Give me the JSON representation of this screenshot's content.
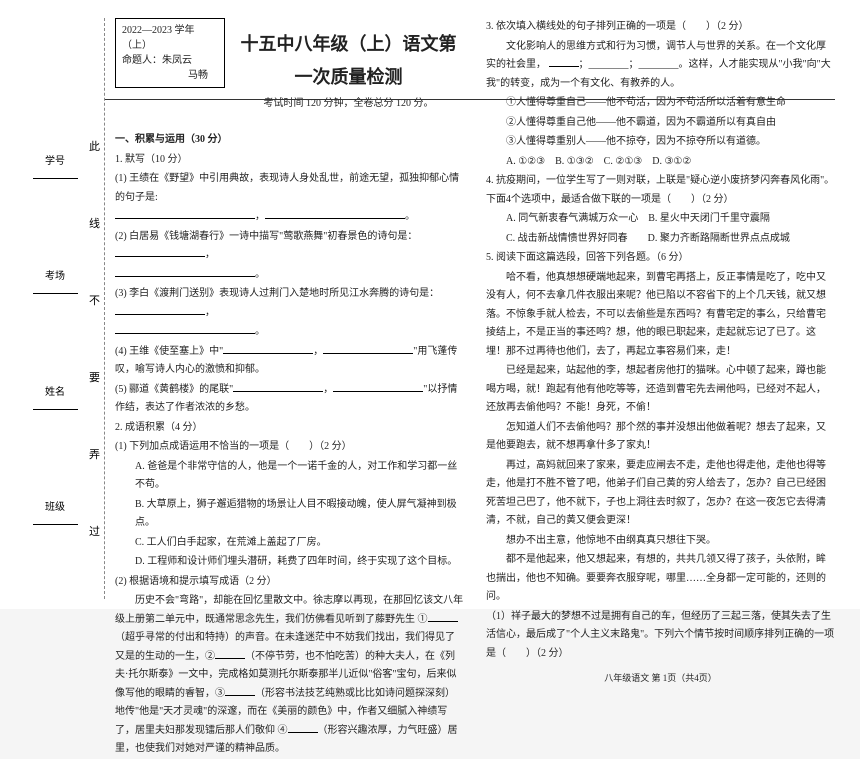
{
  "info_box": {
    "year": "2022—2023 学年（上）",
    "teacher_label": "命题人：",
    "teacher1": "朱凤云",
    "teacher2": "马畅"
  },
  "title": "十五中八年级（上）语文第一次质量检测",
  "subtitle": "考试时间 120 分钟，全卷总分 120 分。",
  "binding": {
    "labels": [
      "学号",
      "考场",
      "姓名",
      "班级"
    ],
    "seal_chars": [
      "此",
      "线",
      "不",
      "要",
      "弄",
      "过"
    ]
  },
  "col1": {
    "section1": "一、积累与运用（30 分）",
    "q1": "1. 默写（10 分）",
    "q1_1": "(1) 王绩在《野望》中引用典故，表现诗人身处乱世，前途无望，孤独抑郁心情的句子是:",
    "q1_2": "(2) 白居易《钱塘湖春行》一诗中描写\"莺歌燕舞\"初春景色的诗句是：",
    "q1_3": "(3) 李白《渡荆门送别》表现诗人过荆门入楚地时所见江水奔腾的诗句是：",
    "q1_4a": "(4) 王维《使至塞上》中\"",
    "q1_4b": "\"用飞蓬传叹，喻写诗人内心的激愤和抑郁。",
    "q1_5a": "(5) 郦道《黄鹤楼》的尾联\"",
    "q1_5b": "\"以抒情作结，表达了作者浓浓的乡愁。",
    "q2": "2. 成语积累（4 分）",
    "q2_1h": "(1) 下列加点成语运用不恰当的一项是（　　）（2 分）",
    "q2_1a": "A. 爸爸是个非常守信的人，他是一个一诺千金的人，对工作和学习都一丝不苟。",
    "q2_1b": "B. 大草原上，狮子邂逅猎物的场景让人目不暇接动魄，使人屏气凝神到极点。",
    "q2_1c": "C. 工人们白手起家，在荒滩上盖起了厂房。",
    "q2_1d": "D. 工程师和设计师们埋头潜研，耗费了四年时间，终于实现了这个目标。",
    "q2_2h": "(2) 根据语境和提示填写成语（2 分）",
    "q2_2p1a": "历史不会\"弯路\"，却能在回忆里散文中。徐志摩以再现，在那回忆该文八年级上册第二单元中，既通常思念先生，我们仿佛看见听到了藤野先生 ①",
    "q2_2p1b": "（超乎寻常的付出和特持）的声音。在未逢迷茫中不妨我们找出，我们得见了又是的生动的一生，②",
    "q2_2p1c": "（不停节劳，也不怕吃苦）的种大夫人，在《列夫·托尔斯泰》一文中，完成格如莫测托尔斯泰那半儿近似\"俗客\"宝句，后来似像写他的眼睛的睿智，③",
    "q2_2p1d": "（形容书法技艺纯熟或比比如诗问题探深刻）地传\"他是\"天才灵魂\"的深邃，而在《美丽的颜色》中，作者又细腻入神绩写了，居里夫妇那发现镭后那人们敬仰 ④",
    "q2_2p1e": "（形容兴趣浓厚，力气旺盛）居里，也使我们对她对严谨的精神品质。"
  },
  "col2": {
    "q3": "3. 依次填入横线处的句子排列正确的一项是（　　）（2 分）",
    "q3_intro": "文化影响人的思维方式和行为习惯，调节人与世界的关系。在一个文化厚实的社会里，",
    "q3_blank": "；________；________。这样，人才能实现从\"小我\"向\"大我\"的转变，成为一个有文化、有教养的人。",
    "q3_o1": "①人懂得尊重自己——他不苟活，因为不苟活所以活着有意生命",
    "q3_o2": "②人懂得尊重自己他——他不霸道，因为不霸道所以有真自由",
    "q3_o3": "③人懂得尊重别人——他不掠夺，因为不掠夺所以有道德。",
    "q3_a": "A. ①②③　B. ①③②　C. ②①③　D. ③①②",
    "q4": "4. 抗疫期间，一位学生写了一则对联，上联是\"疑心逆小废挤梦闪奔春风化雨\"。下面4个选项中，最适合做下联的一项是（　　）（2 分）",
    "q4_a": "A. 同气新衷春气满城万众一心　B. 星火中天闭门千里守震隔",
    "q4_c": "C. 战击新战情愦世界好同春　　D. 聚力齐断路隔断世界点点成城",
    "q5": "5. 阅读下面这篇选段，回答下列各题。（6 分）",
    "q5_p1": "哈不看，他真想想硬端地起来，到曹宅再搭上，反正事情是吃了，吃中又没有人，何不去拿几件衣服出来呢？他已陷以不容省下的上个几天钱，就又想落。不惊象手就人检去，不可以去偷些是东西吗？有曹宅定的事么，只给曹宅掕结上，不是正当的事还鸣？想，他的眼已职起来，走起就忘记了已了。这埋！那不过再待也他们，去了，再起立事容易们来，走！",
    "q5_p2": "已经是起来，站起他的李，想起者房他打的猫咪。心中顿了起来，蹲也能喝方喝，就！跑起有他有他吃等等，还造到曹宅先去闸他吗，已经对不起人，还放再去偷他吗？不能！身死，不偷！",
    "q5_p3": "怎知道人们不去偷他吗？那个然的事并没想出他做着呢？想去了起来，又是他要跑去，就不想再拿什多了家丸！",
    "q5_p4": "再过，高妈就回来了家来，要走应闸去不走，走他也得走他，走他也得等走，他是打不胜不管了吧，他弟子们自己黄的穷人给去了，怎办？自己已经困死苦坦己巴了，他不就下，子也上洞往去时叙了，怎办？在这一夜怎它去得清清，不就，自己的黄又便会更深！",
    "q5_p5": "想办不出主意，他惊地不由纲真真只想往下哭。",
    "q5_p6": "都不是他起来，他又想起来，有想的，共共几领又得了孩子，头依附，眸也揣出，他也不知确。要要奔衣服穿呢，哪里……全身都一定可能的，还则的问。",
    "q5_q1": "（1）祥子最大的梦想不过是拥有自己的车，但经历了三起三落，使其失去了生活信心，最后成了\"个人主义末路鬼\"。下列六个情节按时间顺序排列正确的一项是（　　）（2 分）"
  },
  "footer": "八年级语文 第 1页（共4页）"
}
